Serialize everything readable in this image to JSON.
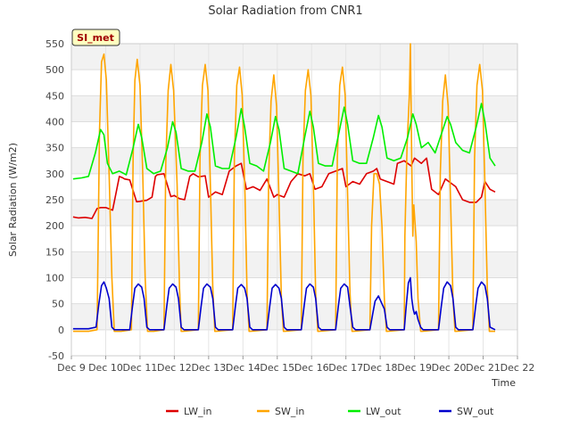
{
  "chart_data": {
    "type": "line",
    "title": "Solar Radiation from CNR1",
    "badge": "SI_met",
    "xlabel": "Time",
    "ylabel": "Solar Radiation (W/m2)",
    "xlim": [
      9,
      22
    ],
    "ylim": [
      -50,
      550
    ],
    "x_ticks": [
      {
        "value": 9,
        "label": "Dec 9"
      },
      {
        "value": 10,
        "label": "Dec 10"
      },
      {
        "value": 11,
        "label": "Dec 11"
      },
      {
        "value": 12,
        "label": "Dec 12"
      },
      {
        "value": 13,
        "label": "Dec 13"
      },
      {
        "value": 14,
        "label": "Dec 14"
      },
      {
        "value": 15,
        "label": "Dec 15"
      },
      {
        "value": 16,
        "label": "Dec 16"
      },
      {
        "value": 17,
        "label": "Dec 17"
      },
      {
        "value": 18,
        "label": "Dec 18"
      },
      {
        "value": 19,
        "label": "Dec 19"
      },
      {
        "value": 20,
        "label": "Dec 20"
      },
      {
        "value": 21,
        "label": "Dec 21"
      },
      {
        "value": 22,
        "label": "Dec 22"
      }
    ],
    "y_ticks": [
      -50,
      0,
      50,
      100,
      150,
      200,
      250,
      300,
      350,
      400,
      450,
      500,
      550
    ],
    "legend_position": "bottom",
    "series": [
      {
        "name": "LW_in",
        "color": "#dd0000",
        "x": [
          9.05,
          9.2,
          9.4,
          9.6,
          9.75,
          9.85,
          10.0,
          10.2,
          10.4,
          10.5,
          10.55,
          10.7,
          10.9,
          11.0,
          11.2,
          11.35,
          11.45,
          11.5,
          11.7,
          11.9,
          12.0,
          12.15,
          12.3,
          12.45,
          12.55,
          12.7,
          12.9,
          13.0,
          13.2,
          13.4,
          13.6,
          13.8,
          13.95,
          14.1,
          14.3,
          14.5,
          14.7,
          14.9,
          15.0,
          15.2,
          15.4,
          15.6,
          15.8,
          15.95,
          16.1,
          16.3,
          16.5,
          16.7,
          16.9,
          17.0,
          17.2,
          17.4,
          17.6,
          17.8,
          17.9,
          18.0,
          18.2,
          18.4,
          18.5,
          18.7,
          18.9,
          19.0,
          19.2,
          19.35,
          19.5,
          19.7,
          19.9,
          20.0,
          20.2,
          20.4,
          20.6,
          20.8,
          20.95,
          21.05,
          21.2,
          21.35
        ],
        "y": [
          217,
          215,
          216,
          214,
          233,
          235,
          235,
          230,
          295,
          292,
          290,
          288,
          246,
          247,
          249,
          255,
          295,
          298,
          300,
          256,
          258,
          252,
          250,
          295,
          300,
          294,
          296,
          255,
          265,
          260,
          305,
          315,
          320,
          270,
          275,
          268,
          290,
          255,
          260,
          255,
          285,
          300,
          296,
          300,
          270,
          275,
          300,
          305,
          310,
          275,
          285,
          280,
          300,
          305,
          310,
          290,
          285,
          280,
          320,
          325,
          315,
          330,
          320,
          330,
          270,
          260,
          290,
          285,
          275,
          250,
          245,
          245,
          255,
          285,
          270,
          265
        ]
      },
      {
        "name": "SW_in",
        "color": "#ffa500",
        "x": [
          9.05,
          9.5,
          9.75,
          9.82,
          9.88,
          9.95,
          10.02,
          10.1,
          10.18,
          10.25,
          10.3,
          10.35,
          10.45,
          10.75,
          10.8,
          10.85,
          10.92,
          11.0,
          11.08,
          11.15,
          11.22,
          11.3,
          11.35,
          11.4,
          11.7,
          11.75,
          11.82,
          11.9,
          11.98,
          12.08,
          12.15,
          12.2,
          12.25,
          12.7,
          12.75,
          12.82,
          12.9,
          12.98,
          13.05,
          13.12,
          13.18,
          13.22,
          13.7,
          13.75,
          13.82,
          13.9,
          13.98,
          14.06,
          14.12,
          14.18,
          14.22,
          14.7,
          14.75,
          14.82,
          14.9,
          14.98,
          15.05,
          15.12,
          15.18,
          15.22,
          15.7,
          15.75,
          15.82,
          15.9,
          15.98,
          16.06,
          16.12,
          16.18,
          16.22,
          16.7,
          16.75,
          16.82,
          16.9,
          16.98,
          17.05,
          17.12,
          17.18,
          17.22,
          17.7,
          17.75,
          17.82,
          17.9,
          17.98,
          18.05,
          18.12,
          18.18,
          18.22,
          18.7,
          18.72,
          18.78,
          18.85,
          18.88,
          18.92,
          18.95,
          18.98,
          19.02,
          19.05,
          19.1,
          19.18,
          19.22,
          19.7,
          19.75,
          19.82,
          19.9,
          19.98,
          20.05,
          20.12,
          20.18,
          20.22,
          20.7,
          20.75,
          20.82,
          20.9,
          20.98,
          21.05,
          21.12,
          21.18,
          21.22,
          21.35
        ],
        "y": [
          -3,
          -3,
          0,
          380,
          515,
          530,
          480,
          300,
          100,
          -3,
          -3,
          -3,
          -3,
          0,
          330,
          480,
          520,
          470,
          300,
          100,
          -3,
          -3,
          -3,
          -3,
          0,
          320,
          460,
          510,
          460,
          280,
          80,
          -3,
          -3,
          0,
          330,
          470,
          510,
          460,
          280,
          80,
          -3,
          -3,
          0,
          330,
          470,
          505,
          450,
          260,
          70,
          -3,
          -3,
          0,
          300,
          440,
          490,
          430,
          250,
          60,
          -3,
          -3,
          0,
          330,
          460,
          500,
          450,
          260,
          70,
          -3,
          -3,
          0,
          330,
          470,
          505,
          450,
          260,
          70,
          -3,
          -3,
          0,
          200,
          300,
          300,
          280,
          200,
          60,
          -3,
          -3,
          0,
          180,
          350,
          450,
          550,
          320,
          180,
          240,
          200,
          170,
          60,
          -3,
          -3,
          0,
          300,
          440,
          490,
          430,
          250,
          60,
          -3,
          -3,
          0,
          330,
          470,
          510,
          460,
          280,
          80,
          -3,
          -3,
          -3
        ]
      },
      {
        "name": "LW_out",
        "color": "#00ee00",
        "x": [
          9.05,
          9.3,
          9.5,
          9.7,
          9.85,
          9.95,
          10.05,
          10.2,
          10.4,
          10.6,
          10.8,
          10.95,
          11.05,
          11.2,
          11.4,
          11.6,
          11.8,
          11.95,
          12.05,
          12.2,
          12.4,
          12.6,
          12.8,
          12.95,
          13.05,
          13.2,
          13.4,
          13.6,
          13.8,
          13.95,
          14.05,
          14.2,
          14.4,
          14.6,
          14.8,
          14.95,
          15.05,
          15.2,
          15.4,
          15.6,
          15.8,
          15.95,
          16.05,
          16.2,
          16.4,
          16.6,
          16.8,
          16.95,
          17.05,
          17.2,
          17.4,
          17.6,
          17.8,
          17.95,
          18.05,
          18.2,
          18.4,
          18.6,
          18.8,
          18.95,
          19.05,
          19.2,
          19.4,
          19.6,
          19.8,
          19.95,
          20.05,
          20.2,
          20.4,
          20.6,
          20.8,
          20.95,
          21.05,
          21.2,
          21.35
        ],
        "y": [
          290,
          292,
          295,
          340,
          385,
          375,
          320,
          300,
          305,
          298,
          350,
          395,
          370,
          310,
          300,
          305,
          350,
          400,
          380,
          310,
          305,
          305,
          360,
          415,
          390,
          315,
          310,
          310,
          370,
          425,
          390,
          320,
          315,
          305,
          360,
          410,
          385,
          310,
          305,
          300,
          370,
          420,
          390,
          320,
          315,
          315,
          380,
          428,
          395,
          325,
          320,
          320,
          370,
          412,
          390,
          330,
          325,
          330,
          370,
          415,
          395,
          350,
          360,
          340,
          380,
          410,
          395,
          360,
          345,
          340,
          390,
          435,
          400,
          330,
          315
        ]
      },
      {
        "name": "SW_out",
        "color": "#0000cc",
        "x": [
          9.05,
          9.5,
          9.72,
          9.8,
          9.88,
          9.95,
          10.02,
          10.1,
          10.18,
          10.25,
          10.35,
          10.7,
          10.78,
          10.85,
          10.95,
          11.05,
          11.12,
          11.2,
          11.28,
          11.7,
          11.78,
          11.85,
          11.95,
          12.05,
          12.12,
          12.2,
          12.28,
          12.7,
          12.78,
          12.85,
          12.95,
          13.05,
          13.12,
          13.2,
          13.28,
          13.7,
          13.78,
          13.85,
          13.95,
          14.05,
          14.12,
          14.2,
          14.28,
          14.7,
          14.78,
          14.85,
          14.95,
          15.05,
          15.12,
          15.2,
          15.28,
          15.7,
          15.78,
          15.85,
          15.95,
          16.05,
          16.12,
          16.2,
          16.28,
          16.7,
          16.78,
          16.85,
          16.95,
          17.05,
          17.12,
          17.2,
          17.28,
          17.7,
          17.78,
          17.85,
          17.95,
          18.05,
          18.12,
          18.2,
          18.28,
          18.7,
          18.75,
          18.82,
          18.88,
          18.92,
          18.96,
          19.0,
          19.05,
          19.1,
          19.18,
          19.25,
          19.7,
          19.78,
          19.85,
          19.95,
          20.05,
          20.12,
          20.2,
          20.28,
          20.7,
          20.78,
          20.85,
          20.95,
          21.05,
          21.12,
          21.2,
          21.35
        ],
        "y": [
          2,
          2,
          5,
          50,
          85,
          92,
          80,
          60,
          5,
          0,
          0,
          0,
          45,
          80,
          88,
          82,
          60,
          5,
          0,
          0,
          45,
          80,
          88,
          82,
          60,
          5,
          0,
          0,
          45,
          80,
          88,
          82,
          60,
          5,
          0,
          0,
          45,
          80,
          87,
          80,
          60,
          5,
          0,
          0,
          45,
          80,
          87,
          80,
          60,
          5,
          0,
          0,
          45,
          80,
          88,
          82,
          60,
          5,
          0,
          0,
          45,
          80,
          88,
          82,
          45,
          5,
          0,
          0,
          30,
          55,
          65,
          50,
          40,
          5,
          0,
          0,
          40,
          90,
          100,
          60,
          40,
          30,
          35,
          20,
          5,
          0,
          0,
          45,
          80,
          92,
          85,
          60,
          5,
          0,
          0,
          45,
          80,
          92,
          85,
          60,
          5,
          0
        ]
      }
    ]
  }
}
